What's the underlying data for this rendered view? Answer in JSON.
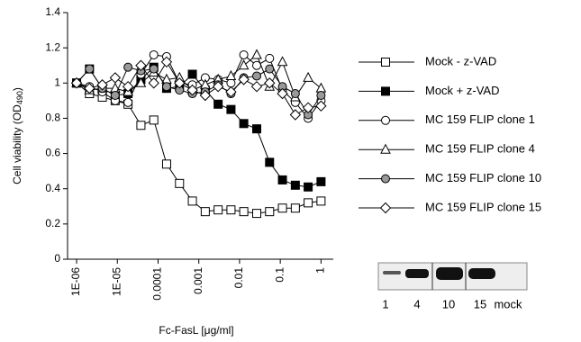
{
  "chart_data": {
    "type": "line",
    "ylabel": "Cell viability (OD",
    "ylabel_sub": "490",
    "ylabel_end": ")",
    "xlabel": "Fc-FasL [μg/ml]",
    "xscale": "log",
    "xlim": [
      6e-07,
      2
    ],
    "xticks": [
      {
        "value": 1e-06,
        "label": "1E-06"
      },
      {
        "value": 1e-05,
        "label": "1E-05"
      },
      0.0001,
      0.001,
      0.01,
      0.1,
      1
    ],
    "ylim": [
      0,
      1.4
    ],
    "yticks": [
      0,
      0.2,
      0.4,
      0.6,
      0.8,
      1,
      1.2,
      1.4
    ],
    "x": [
      1e-06,
      2.07e-06,
      4.28e-06,
      8.86e-06,
      1.83e-05,
      3.79e-05,
      7.85e-05,
      0.000162,
      0.000336,
      0.000695,
      0.00144,
      0.00298,
      0.00616,
      0.0127,
      0.0264,
      0.0546,
      0.113,
      0.234,
      0.483,
      1
    ],
    "series": [
      {
        "name": "Mock - z-VAD",
        "color": "#000000",
        "fill": "#ffffff",
        "marker": "square",
        "values": [
          1.0,
          0.94,
          0.92,
          0.9,
          0.88,
          0.76,
          0.79,
          0.54,
          0.43,
          0.33,
          0.27,
          0.28,
          0.28,
          0.27,
          0.26,
          0.27,
          0.29,
          0.29,
          0.32,
          0.33
        ]
      },
      {
        "name": "Mock + z-VAD",
        "color": "#000000",
        "fill": "#000000",
        "marker": "square",
        "values": [
          1.0,
          1.08,
          0.97,
          0.93,
          0.94,
          1.02,
          1.09,
          0.97,
          0.98,
          1.05,
          0.96,
          0.88,
          0.85,
          0.77,
          0.74,
          0.55,
          0.45,
          0.42,
          0.41,
          0.44
        ]
      },
      {
        "name": "MC 159 FLIP clone 1",
        "color": "#000000",
        "fill": "#ffffff",
        "marker": "circle",
        "values": [
          1.0,
          0.98,
          0.95,
          0.9,
          0.89,
          1.05,
          1.16,
          1.15,
          1.0,
          0.99,
          1.03,
          1.02,
          1.0,
          1.16,
          1.1,
          1.14,
          0.96,
          0.89,
          0.8,
          0.9
        ]
      },
      {
        "name": "MC 159 FLIP clone 4",
        "color": "#000000",
        "fill": "#ffffff",
        "marker": "triangle",
        "values": [
          1.0,
          0.96,
          0.97,
          0.97,
          0.95,
          1.0,
          1.06,
          1.02,
          1.03,
          0.96,
          0.99,
          1.02,
          1.04,
          1.1,
          1.16,
          0.98,
          1.12,
          0.92,
          1.03,
          0.97
        ]
      },
      {
        "name": "MC 159 FLIP clone 10",
        "color": "#000000",
        "fill": "#999999",
        "marker": "circle",
        "values": [
          1.0,
          1.08,
          0.97,
          0.93,
          1.09,
          1.07,
          1.08,
          0.98,
          0.96,
          0.94,
          0.95,
          0.99,
          0.94,
          1.03,
          1.04,
          1.08,
          0.98,
          0.94,
          0.82,
          0.93
        ]
      },
      {
        "name": "MC 159 FLIP clone 15",
        "color": "#000000",
        "fill": "#ffffff",
        "marker": "diamond",
        "values": [
          1.0,
          0.97,
          0.99,
          1.03,
          0.98,
          1.1,
          1.0,
          1.12,
          1.0,
          0.96,
          0.93,
          0.98,
          0.95,
          1.02,
          0.98,
          1.0,
          0.94,
          0.82,
          0.86,
          0.87
        ]
      }
    ],
    "blot_lanes": [
      "1",
      "4",
      "10",
      "15",
      "mock"
    ]
  }
}
